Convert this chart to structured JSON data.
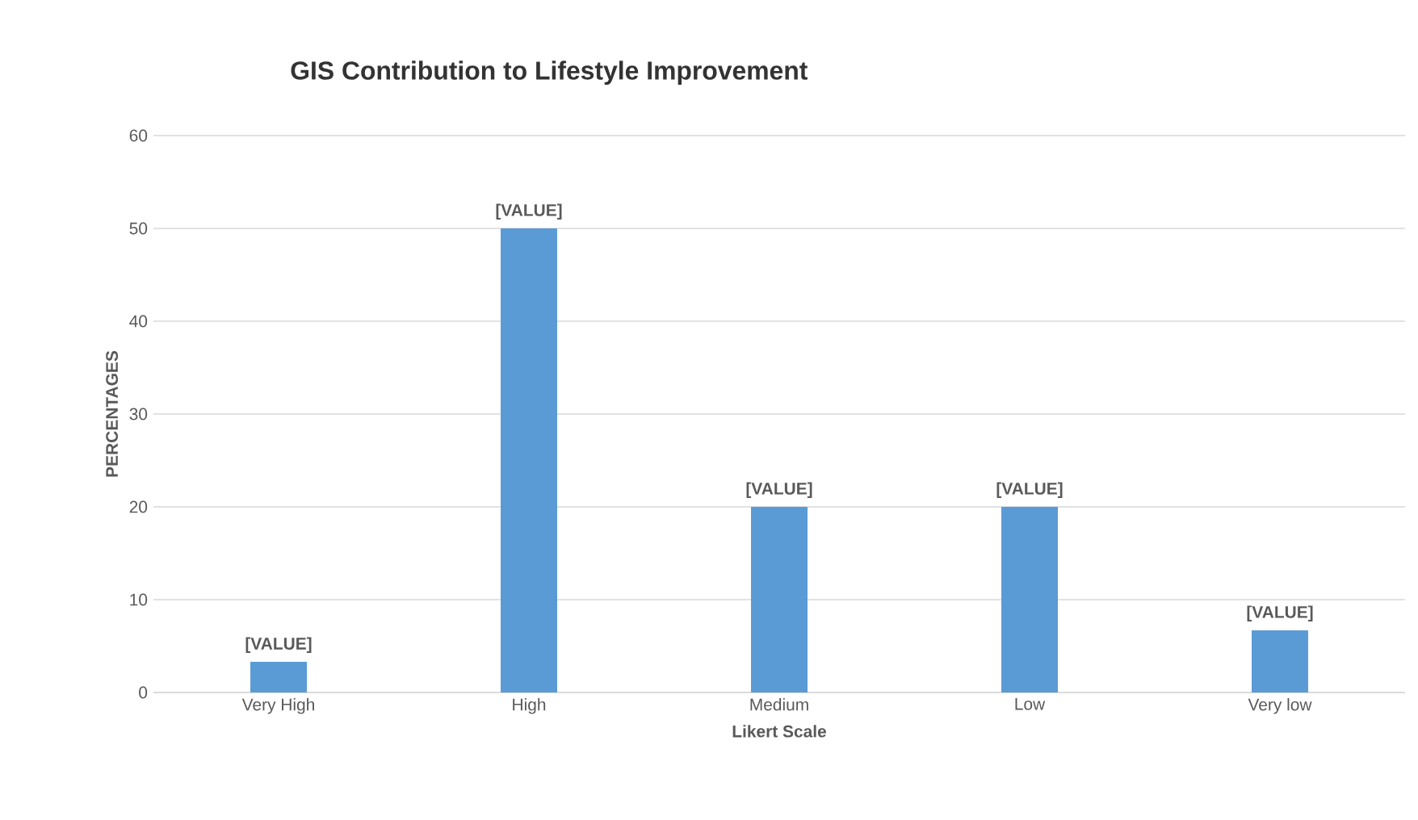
{
  "chart_data": {
    "type": "bar",
    "title": "GIS Contribution to Lifestyle Improvement",
    "xlabel": "Likert Scale",
    "ylabel": "PERCENTAGES",
    "categories": [
      "Very High",
      "High",
      "Medium",
      "Low",
      "Very low"
    ],
    "values": [
      3.3,
      50,
      20,
      20,
      6.7
    ],
    "value_labels": [
      "[VALUE]",
      "[VALUE]",
      "[VALUE]",
      "[VALUE]",
      "[VALUE]"
    ],
    "color": "#5b9bd5",
    "ylim": [
      0,
      60
    ],
    "yticks": [
      0,
      10,
      20,
      30,
      40,
      50,
      60
    ],
    "grid": "y"
  }
}
